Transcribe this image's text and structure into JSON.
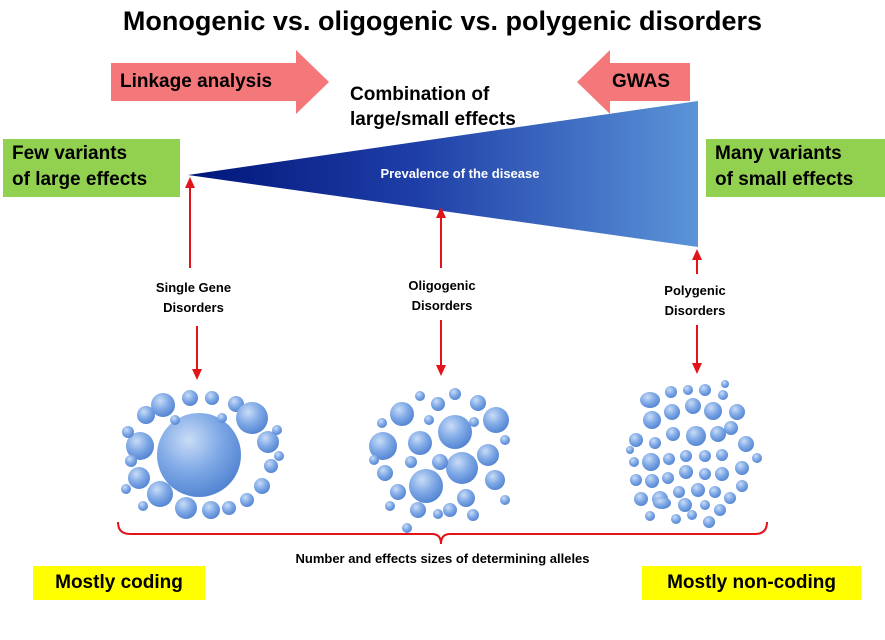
{
  "title": "Monogenic vs. oligogenic vs. polygenic disorders",
  "arrows": {
    "left_label": "Linkage analysis",
    "right_label": "GWAS"
  },
  "combination": {
    "line1": "Combination of",
    "line2": "large/small effects"
  },
  "wedge_label": "Prevalence of the disease",
  "left_box": {
    "line1": "Few variants",
    "line2": "of large effects"
  },
  "right_box": {
    "line1": "Many variants",
    "line2": "of small effects"
  },
  "disorders": {
    "single": {
      "line1": "Single Gene",
      "line2": "Disorders"
    },
    "oligo": {
      "line1": "Oligogenic",
      "line2": "Disorders"
    },
    "poly": {
      "line1": "Polygenic",
      "line2": "Disorders"
    }
  },
  "bottom_label": "Number and effects sizes of determining alleles",
  "coding_label": "Mostly coding",
  "noncoding_label": "Mostly non-coding",
  "colors": {
    "arrow_fill": "#f4787a",
    "wedge_start": "#00157a",
    "wedge_end": "#5b94d8",
    "red_line": "#e2141a",
    "green": "#92d050",
    "yellow": "#ffff00"
  }
}
